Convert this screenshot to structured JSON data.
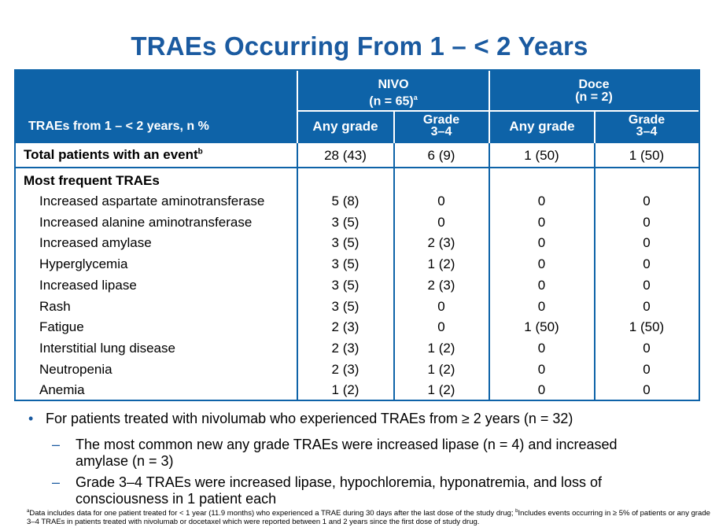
{
  "title": "TRAEs Occurring From 1 – < 2 Years",
  "table": {
    "row_header_label": "TRAEs from 1 – < 2 years, n %",
    "groups": [
      {
        "name": "NIVO",
        "n": "(n = 65)",
        "sup": "a"
      },
      {
        "name": "Doce",
        "n": "(n = 2)",
        "sup": ""
      }
    ],
    "columns": [
      "Any grade",
      "Grade\n3–4",
      "Any grade",
      "Grade\n3–4"
    ],
    "total_row": {
      "label": "Total patients with an event",
      "sup": "b",
      "values": [
        "28 (43)",
        "6 (9)",
        "1 (50)",
        "1 (50)"
      ]
    },
    "section_label": "Most frequent TRAEs",
    "rows": [
      {
        "label": "Increased aspartate aminotransferase",
        "values": [
          "5 (8)",
          "0",
          "0",
          "0"
        ]
      },
      {
        "label": "Increased alanine aminotransferase",
        "values": [
          "3 (5)",
          "0",
          "0",
          "0"
        ]
      },
      {
        "label": "Increased amylase",
        "values": [
          "3 (5)",
          "2 (3)",
          "0",
          "0"
        ]
      },
      {
        "label": "Hyperglycemia",
        "values": [
          "3 (5)",
          "1 (2)",
          "0",
          "0"
        ]
      },
      {
        "label": "Increased lipase",
        "values": [
          "3 (5)",
          "2 (3)",
          "0",
          "0"
        ]
      },
      {
        "label": "Rash",
        "values": [
          "3 (5)",
          "0",
          "0",
          "0"
        ]
      },
      {
        "label": "Fatigue",
        "values": [
          "2 (3)",
          "0",
          "1 (50)",
          "1 (50)"
        ]
      },
      {
        "label": "Interstitial lung disease",
        "values": [
          "2 (3)",
          "1 (2)",
          "0",
          "0"
        ]
      },
      {
        "label": "Neutropenia",
        "values": [
          "2 (3)",
          "1 (2)",
          "0",
          "0"
        ]
      },
      {
        "label": "Anemia",
        "values": [
          "1 (2)",
          "1 (2)",
          "0",
          "0"
        ]
      }
    ]
  },
  "bullets": {
    "main": "For patients treated with nivolumab who experienced TRAEs from ≥ 2 years (n = 32)",
    "subs": [
      "The most common new any grade TRAEs were increased lipase (n = 4) and increased amylase (n = 3)",
      "Grade 3–4 TRAEs were increased lipase, hypochloremia, hyponatremia, and loss of consciousness in 1 patient each"
    ]
  },
  "footnote": {
    "a_mark": "a",
    "a_text": "Data includes data for one patient treated for < 1 year (11.9 months) who experienced a TRAE during 30 days after the last dose of the study drug; ",
    "b_mark": "b",
    "b_text": "Includes events occurring in ≥ 5% of patients or any grade 3–4 TRAEs in patients treated with nivolumab or docetaxel which were reported between 1 and 2 years since the first dose of study drug."
  }
}
